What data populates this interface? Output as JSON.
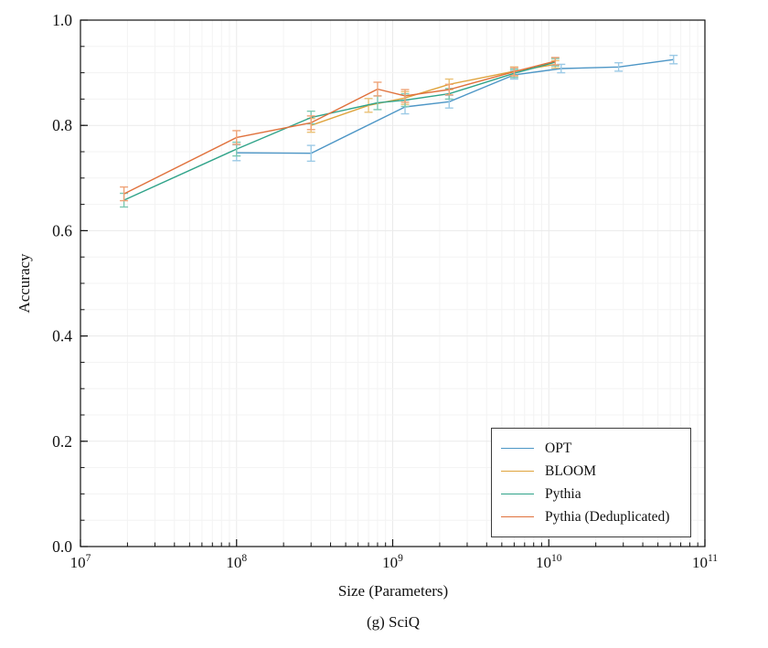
{
  "figure": {
    "caption": "(g) SciQ"
  },
  "chart_data": {
    "type": "line",
    "title": "",
    "xlabel": "Size (Parameters)",
    "ylabel": "Accuracy",
    "x_scale": "log",
    "xlim": [
      10000000,
      100000000000
    ],
    "ylim": [
      0.0,
      1.0
    ],
    "x_tick_exponents": [
      7,
      8,
      9,
      10,
      11
    ],
    "y_tick_labels": [
      "0.0",
      "0.2",
      "0.4",
      "0.6",
      "0.8",
      "1.0"
    ],
    "y_minor_step": 0.05,
    "grid": true,
    "error_bars": true,
    "legend_position": "lower right",
    "series": [
      {
        "name": "OPT",
        "line_color": "#4D96C6",
        "errorbar_color": "#9CCAE6",
        "points": [
          {
            "size": 100000000,
            "accuracy": 0.748,
            "error": 0.015
          },
          {
            "size": 300000000,
            "accuracy": 0.747,
            "error": 0.015
          },
          {
            "size": 1200000000,
            "accuracy": 0.835,
            "error": 0.013
          },
          {
            "size": 2300000000,
            "accuracy": 0.845,
            "error": 0.012
          },
          {
            "size": 6000000000,
            "accuracy": 0.896,
            "error": 0.008
          },
          {
            "size": 12000000000,
            "accuracy": 0.908,
            "error": 0.008
          },
          {
            "size": 28000000000,
            "accuracy": 0.911,
            "error": 0.008
          },
          {
            "size": 63000000000,
            "accuracy": 0.925,
            "error": 0.008
          }
        ]
      },
      {
        "name": "BLOOM",
        "line_color": "#DFA33C",
        "errorbar_color": "#EAC176",
        "points": [
          {
            "size": 300000000,
            "accuracy": 0.8,
            "error": 0.013
          },
          {
            "size": 700000000,
            "accuracy": 0.838,
            "error": 0.013
          },
          {
            "size": 1200000000,
            "accuracy": 0.852,
            "error": 0.012
          },
          {
            "size": 2300000000,
            "accuracy": 0.878,
            "error": 0.01
          },
          {
            "size": 6000000000,
            "accuracy": 0.903,
            "error": 0.008
          },
          {
            "size": 11000000000,
            "accuracy": 0.916,
            "error": 0.007
          }
        ]
      },
      {
        "name": "Pythia",
        "line_color": "#2FA389",
        "errorbar_color": "#7CC8B2",
        "points": [
          {
            "size": 19000000,
            "accuracy": 0.658,
            "error": 0.013
          },
          {
            "size": 100000000,
            "accuracy": 0.755,
            "error": 0.013
          },
          {
            "size": 300000000,
            "accuracy": 0.815,
            "error": 0.012
          },
          {
            "size": 800000000,
            "accuracy": 0.843,
            "error": 0.013
          },
          {
            "size": 1200000000,
            "accuracy": 0.848,
            "error": 0.012
          },
          {
            "size": 2300000000,
            "accuracy": 0.86,
            "error": 0.01
          },
          {
            "size": 6000000000,
            "accuracy": 0.899,
            "error": 0.008
          },
          {
            "size": 11000000000,
            "accuracy": 0.92,
            "error": 0.007
          }
        ]
      },
      {
        "name": "Pythia (Deduplicated)",
        "line_color": "#E0713C",
        "errorbar_color": "#EFA377",
        "points": [
          {
            "size": 19000000,
            "accuracy": 0.67,
            "error": 0.013
          },
          {
            "size": 100000000,
            "accuracy": 0.777,
            "error": 0.013
          },
          {
            "size": 300000000,
            "accuracy": 0.805,
            "error": 0.013
          },
          {
            "size": 800000000,
            "accuracy": 0.869,
            "error": 0.013
          },
          {
            "size": 1200000000,
            "accuracy": 0.856,
            "error": 0.012
          },
          {
            "size": 2300000000,
            "accuracy": 0.868,
            "error": 0.01
          },
          {
            "size": 6000000000,
            "accuracy": 0.902,
            "error": 0.008
          },
          {
            "size": 11000000000,
            "accuracy": 0.922,
            "error": 0.007
          }
        ]
      }
    ]
  }
}
